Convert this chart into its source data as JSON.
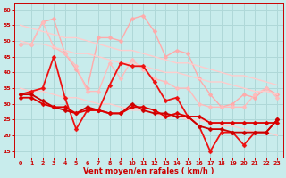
{
  "xlabel": "Vent moyen/en rafales ( km/h )",
  "xlim": [
    -0.5,
    23.5
  ],
  "ylim": [
    13,
    62
  ],
  "yticks": [
    15,
    20,
    25,
    30,
    35,
    40,
    45,
    50,
    55,
    60
  ],
  "xticks": [
    0,
    1,
    2,
    3,
    4,
    5,
    6,
    7,
    8,
    9,
    10,
    11,
    12,
    13,
    14,
    15,
    16,
    17,
    18,
    19,
    20,
    21,
    22,
    23
  ],
  "background_color": "#c8ecec",
  "grid_color": "#afd8d8",
  "series": [
    {
      "name": "rafales_light1",
      "color": "#ffaaaa",
      "linewidth": 1.0,
      "marker": "D",
      "markersize": 2.5,
      "y": [
        49,
        49,
        56,
        57,
        46,
        41,
        35,
        51,
        51,
        50,
        57,
        58,
        53,
        45,
        47,
        46,
        38,
        33,
        29,
        30,
        33,
        32,
        35,
        33
      ]
    },
    {
      "name": "rafales_light2",
      "color": "#ffbbbb",
      "linewidth": 1.0,
      "marker": "D",
      "markersize": 2.5,
      "y": [
        49,
        49,
        56,
        48,
        46,
        42,
        34,
        34,
        43,
        38,
        44,
        41,
        38,
        37,
        35,
        35,
        30,
        29,
        29,
        29,
        29,
        33,
        35,
        32
      ]
    },
    {
      "name": "trend_upper1",
      "color": "#ffcccc",
      "linewidth": 1.0,
      "marker": null,
      "markersize": 0,
      "y": [
        55,
        54,
        53,
        52,
        51,
        51,
        50,
        49,
        48,
        47,
        47,
        46,
        45,
        44,
        43,
        43,
        42,
        41,
        40,
        39,
        39,
        38,
        37,
        36
      ]
    },
    {
      "name": "trend_upper2",
      "color": "#ffcccc",
      "linewidth": 1.0,
      "marker": null,
      "markersize": 0,
      "y": [
        50,
        49,
        49,
        48,
        47,
        46,
        46,
        45,
        44,
        43,
        43,
        42,
        41,
        40,
        40,
        39,
        38,
        37,
        37,
        36,
        35,
        34,
        34,
        33
      ]
    },
    {
      "name": "trend_lower1",
      "color": "#ffcccc",
      "linewidth": 1.0,
      "marker": null,
      "markersize": 0,
      "y": [
        35,
        34,
        34,
        33,
        32,
        32,
        31,
        30,
        30,
        29,
        28,
        28,
        27,
        26,
        26,
        25,
        25,
        24,
        23,
        23,
        22,
        21,
        21,
        20
      ]
    },
    {
      "name": "vent_moyen_dark1",
      "color": "#ee1111",
      "linewidth": 1.3,
      "marker": "D",
      "markersize": 2.5,
      "y": [
        33,
        34,
        35,
        45,
        32,
        22,
        28,
        28,
        36,
        43,
        42,
        42,
        37,
        31,
        32,
        26,
        23,
        15,
        21,
        21,
        17,
        21,
        21,
        25
      ]
    },
    {
      "name": "vent_moyen_dark2",
      "color": "#cc0000",
      "linewidth": 1.3,
      "marker": "D",
      "markersize": 2.5,
      "y": [
        33,
        33,
        31,
        29,
        28,
        27,
        29,
        28,
        27,
        27,
        30,
        28,
        27,
        27,
        26,
        26,
        23,
        22,
        22,
        21,
        21,
        21,
        21,
        25
      ]
    },
    {
      "name": "vent_moyen_dark3",
      "color": "#dd0000",
      "linewidth": 1.3,
      "marker": "D",
      "markersize": 2.5,
      "y": [
        32,
        32,
        30,
        29,
        29,
        27,
        28,
        28,
        27,
        27,
        29,
        29,
        28,
        26,
        27,
        26,
        26,
        24,
        24,
        24,
        24,
        24,
        24,
        24
      ]
    }
  ]
}
